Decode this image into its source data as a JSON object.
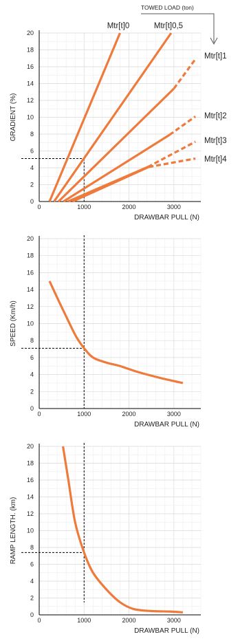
{
  "header": {
    "towed_load_label": "TOWED LOAD (ton)"
  },
  "colors": {
    "curve": "#ee7a3c",
    "grid_major": "#d9d9d9",
    "grid_minor": "#efefef",
    "axis": "#000000"
  },
  "chart_data": [
    {
      "type": "line",
      "xlabel": "DRAWBAR PULL (N)",
      "ylabel": "GRADIENT  (%)",
      "xlim": [
        0,
        3600
      ],
      "ylim": [
        0,
        20
      ],
      "xticks": [
        "0",
        "1000",
        "2000",
        "3000"
      ],
      "yticks": [
        "0",
        "2",
        "4",
        "6",
        "8",
        "10",
        "12",
        "14",
        "16",
        "18",
        "20"
      ],
      "reference": {
        "x": 1000,
        "y": 5.1
      },
      "series": [
        {
          "name": "Mtr[t]0",
          "solid": [
            [
              230,
              0
            ],
            [
              1800,
              20
            ]
          ],
          "dashed": []
        },
        {
          "name": "Mtr[t]0,5",
          "solid": [
            [
              330,
              0
            ],
            [
              2940,
              20
            ]
          ],
          "dashed": []
        },
        {
          "name": "Mtr[t]1",
          "solid": [
            [
              430,
              0
            ],
            [
              3000,
              13.4
            ]
          ],
          "dashed": [
            [
              3000,
              13.4
            ],
            [
              3480,
              16.9
            ]
          ]
        },
        {
          "name": "Mtr[t]2",
          "solid": [
            [
              540,
              0
            ],
            [
              2900,
              7.9
            ]
          ],
          "dashed": [
            [
              2900,
              7.9
            ],
            [
              3480,
              10.1
            ]
          ]
        },
        {
          "name": "Mtr[t]3",
          "solid": [
            [
              640,
              0
            ],
            [
              2420,
              4.1
            ]
          ],
          "dashed": [
            [
              2420,
              4.1
            ],
            [
              3480,
              7.1
            ]
          ]
        },
        {
          "name": "Mtr[t]4",
          "solid": [
            [
              740,
              0
            ],
            [
              2440,
              4.1
            ]
          ],
          "dashed": [
            [
              2440,
              4.1
            ],
            [
              3480,
              5.1
            ]
          ]
        }
      ]
    },
    {
      "type": "line",
      "xlabel": "DRAWBAR PULL (N)",
      "ylabel": "SPEED (Km/h)",
      "xlim": [
        0,
        3600
      ],
      "ylim": [
        0,
        20
      ],
      "xticks": [
        "0",
        "1000",
        "2000",
        "3000"
      ],
      "yticks": [
        "0",
        "2",
        "4",
        "6",
        "8",
        "10",
        "12",
        "14",
        "16",
        "18",
        "20"
      ],
      "reference": {
        "x": 1000,
        "y": 7.1
      },
      "series": [
        {
          "points": [
            [
              230,
              15
            ],
            [
              450,
              12.5
            ],
            [
              650,
              10.3
            ],
            [
              820,
              8.5
            ],
            [
              1000,
              7.1
            ],
            [
              1200,
              6.0
            ],
            [
              1500,
              5.4
            ],
            [
              1800,
              5.0
            ],
            [
              2200,
              4.3
            ],
            [
              2700,
              3.6
            ],
            [
              3200,
              3.0
            ]
          ]
        }
      ]
    },
    {
      "type": "line",
      "xlabel": "DRAWBAR PULL (N)",
      "ylabel": "RAMP LENGTH. (km)",
      "xlim": [
        0,
        3600
      ],
      "ylim": [
        0,
        20
      ],
      "xticks": [
        "0",
        "1000",
        "2000",
        "3000"
      ],
      "yticks": [
        "0",
        "2",
        "4",
        "6",
        "8",
        "10",
        "12",
        "14",
        "16",
        "18",
        "20"
      ],
      "reference": {
        "x": 1000,
        "y": 7.4
      },
      "series": [
        {
          "points": [
            [
              530,
              20
            ],
            [
              650,
              16
            ],
            [
              800,
              11
            ],
            [
              1000,
              7.4
            ],
            [
              1200,
              5.0
            ],
            [
              1500,
              3.0
            ],
            [
              1800,
              1.5
            ],
            [
              2100,
              0.7
            ],
            [
              2500,
              0.45
            ],
            [
              2900,
              0.4
            ],
            [
              3200,
              0.3
            ]
          ]
        }
      ]
    }
  ]
}
